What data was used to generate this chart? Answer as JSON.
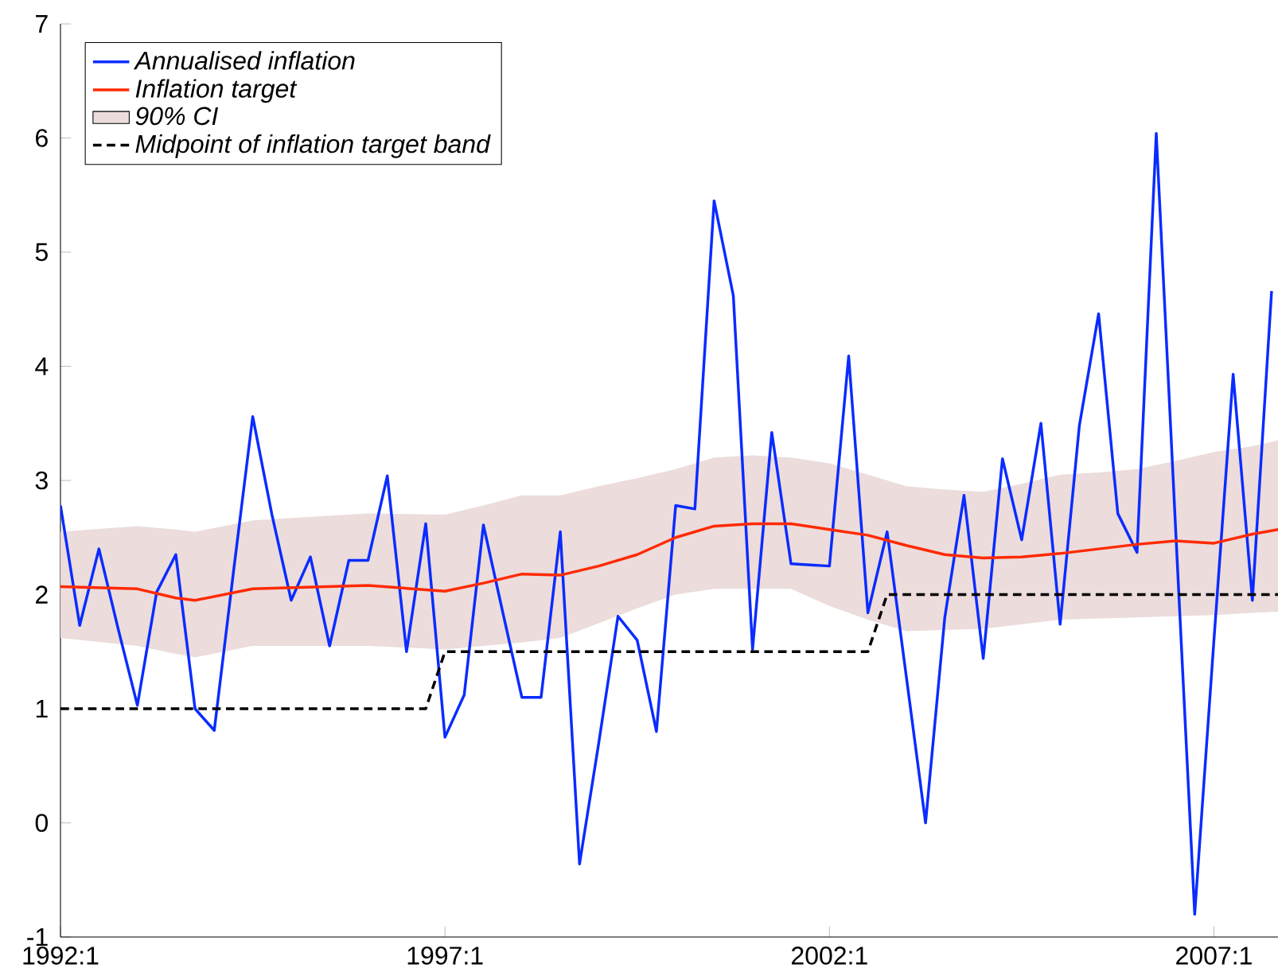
{
  "chart_data": {
    "type": "line",
    "xlim": [
      "1992-01",
      "2007-11"
    ],
    "ylim": [
      -1,
      7
    ],
    "xticks": [
      {
        "value": "1992-01",
        "label": "1992:1"
      },
      {
        "value": "1997-01",
        "label": "1997:1"
      },
      {
        "value": "2002-01",
        "label": "2002:1"
      },
      {
        "value": "2007-01",
        "label": "2007:1"
      }
    ],
    "yticks": [
      -1,
      0,
      1,
      2,
      3,
      4,
      5,
      6,
      7
    ],
    "legend": "top left",
    "series": [
      {
        "name": "*Annualised inflation*",
        "color": "#0a2cff",
        "line_style": "solid",
        "x": [
          "1992-01",
          "1992-04",
          "1992-07",
          "1992-10",
          "1993-01",
          "1993-04",
          "1993-07",
          "1993-10",
          "1994-01",
          "1994-04",
          "1994-07",
          "1994-10",
          "1995-01",
          "1995-04",
          "1995-07",
          "1995-10",
          "1996-01",
          "1996-04",
          "1996-07",
          "1996-10",
          "1997-01",
          "1997-04",
          "1997-07",
          "1997-10",
          "1998-01",
          "1998-04",
          "1998-07",
          "1998-10",
          "1999-01",
          "1999-04",
          "1999-07",
          "1999-10",
          "2000-01",
          "2000-04",
          "2000-07",
          "2000-10",
          "2001-01",
          "2001-04",
          "2001-07",
          "2001-10",
          "2002-01",
          "2002-04",
          "2002-07",
          "2002-10",
          "2003-01",
          "2003-04",
          "2003-07",
          "2003-10",
          "2004-01",
          "2004-04",
          "2004-07",
          "2004-10",
          "2005-01",
          "2005-04",
          "2005-07",
          "2005-10",
          "2006-01",
          "2006-04",
          "2006-07",
          "2006-10",
          "2007-01",
          "2007-04",
          "2007-07",
          "2007-10"
        ],
        "values": [
          2.78,
          1.73,
          2.4,
          1.7,
          1.03,
          2.02,
          2.35,
          1.0,
          0.81,
          2.2,
          3.56,
          2.7,
          1.95,
          2.33,
          1.55,
          2.3,
          2.3,
          3.04,
          1.5,
          2.62,
          0.75,
          1.12,
          2.61,
          1.85,
          1.1,
          1.1,
          2.55,
          -0.36,
          0.7,
          1.81,
          1.6,
          0.8,
          2.78,
          2.75,
          5.45,
          4.62,
          1.52,
          3.42,
          2.27,
          2.26,
          2.25,
          4.09,
          1.84,
          2.55,
          1.28,
          0.0,
          1.8,
          2.87,
          1.44,
          3.19,
          2.48,
          3.5,
          1.74,
          3.48,
          4.46,
          2.71,
          2.37,
          6.04,
          2.6,
          -0.8,
          1.6,
          3.93,
          1.95,
          4.66
        ]
      },
      {
        "name": "*Inflation target*",
        "color": "#ff2a00",
        "line_style": "solid",
        "x": [
          "1992-01",
          "1993-01",
          "1993-07",
          "1993-10",
          "1994-07",
          "1995-01",
          "1996-01",
          "1997-01",
          "1997-07",
          "1998-01",
          "1998-07",
          "1999-01",
          "1999-07",
          "2000-01",
          "2000-07",
          "2001-01",
          "2001-07",
          "2002-01",
          "2002-07",
          "2003-01",
          "2003-07",
          "2004-01",
          "2004-07",
          "2005-01",
          "2005-07",
          "2006-01",
          "2006-07",
          "2007-01",
          "2007-07",
          "2007-11"
        ],
        "values": [
          2.07,
          2.05,
          1.97,
          1.95,
          2.05,
          2.06,
          2.08,
          2.03,
          2.1,
          2.18,
          2.17,
          2.25,
          2.35,
          2.5,
          2.6,
          2.62,
          2.62,
          2.57,
          2.52,
          2.43,
          2.35,
          2.32,
          2.33,
          2.36,
          2.4,
          2.44,
          2.47,
          2.45,
          2.53,
          2.57
        ],
        "upper": [
          2.55,
          2.6,
          2.57,
          2.55,
          2.65,
          2.67,
          2.71,
          2.7,
          2.78,
          2.87,
          2.87,
          2.95,
          3.02,
          3.1,
          3.2,
          3.22,
          3.2,
          3.15,
          3.05,
          2.95,
          2.92,
          2.9,
          2.97,
          3.05,
          3.07,
          3.1,
          3.17,
          3.25,
          3.3,
          3.35
        ],
        "lower": [
          1.62,
          1.55,
          1.48,
          1.45,
          1.55,
          1.55,
          1.55,
          1.52,
          1.55,
          1.58,
          1.62,
          1.75,
          1.88,
          2.0,
          2.05,
          2.05,
          2.05,
          1.9,
          1.78,
          1.68,
          1.69,
          1.7,
          1.74,
          1.78,
          1.79,
          1.8,
          1.81,
          1.82,
          1.84,
          1.85
        ]
      },
      {
        "name": "*90% CI*",
        "type": "area",
        "color": "#ecdcdc"
      },
      {
        "name": "*Midpoint of inflation target band*",
        "color": "#000000",
        "line_style": "dashed",
        "x": [
          "1992-01",
          "1996-10",
          "1997-01",
          "2002-07",
          "2002-10",
          "2007-11"
        ],
        "values": [
          1,
          1,
          1.5,
          1.5,
          2,
          2
        ]
      }
    ]
  }
}
